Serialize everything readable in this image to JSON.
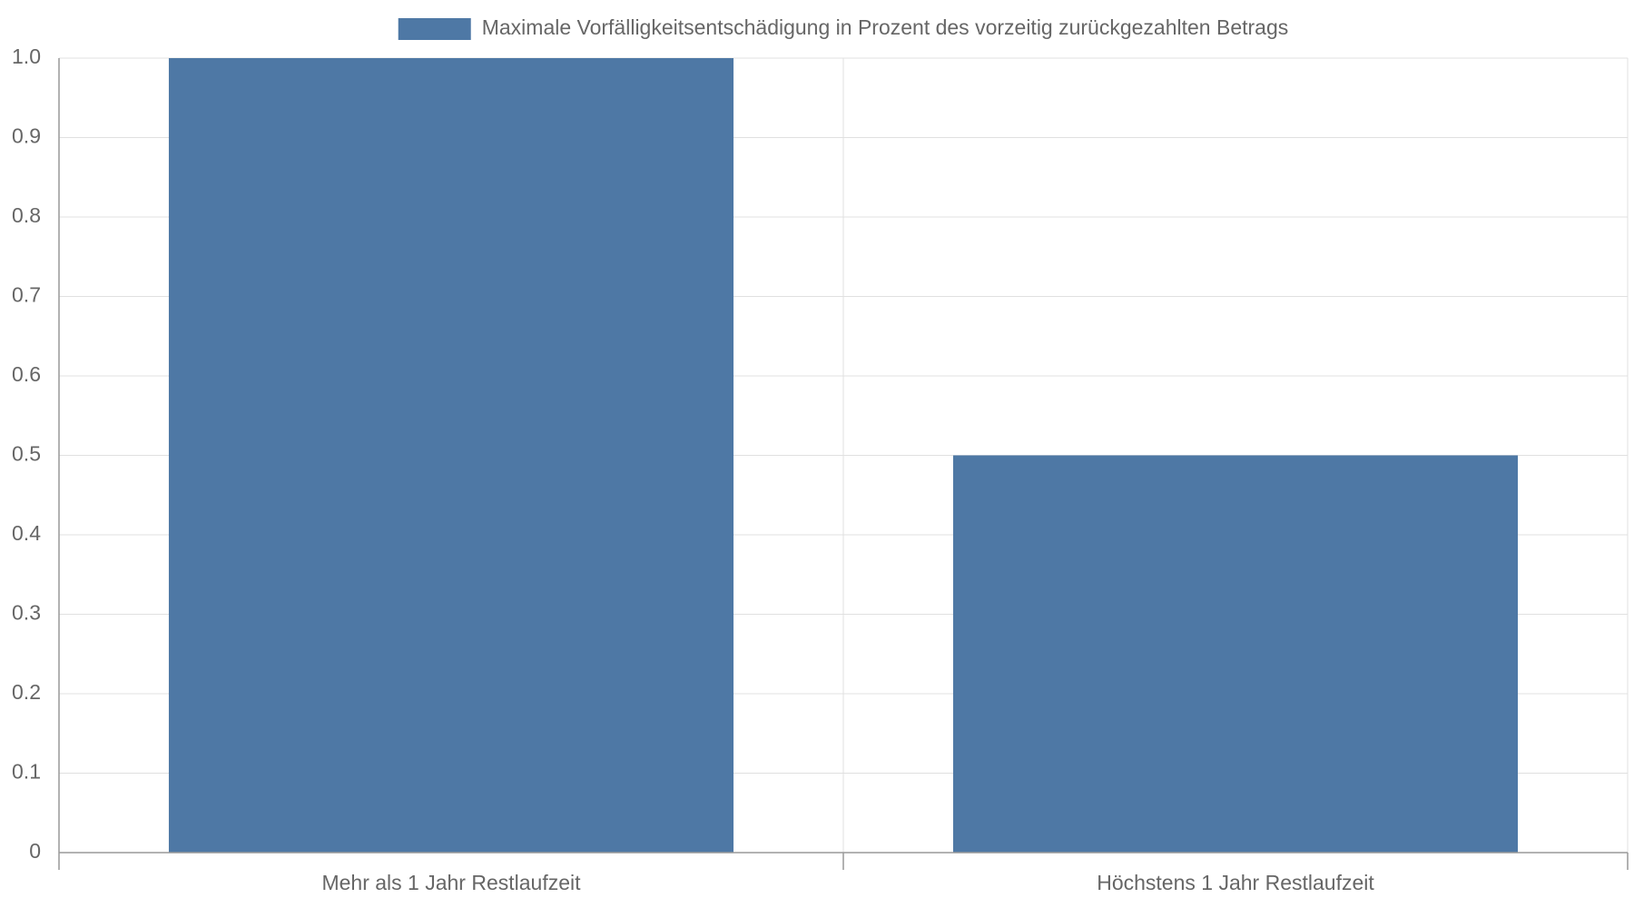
{
  "chart_data": {
    "type": "bar",
    "categories": [
      "Mehr als 1 Jahr Restlaufzeit",
      "Höchstens 1 Jahr Restlaufzeit"
    ],
    "series": [
      {
        "name": "Maximale Vorfälligkeitsentschädigung in Prozent des vorzeitig zurückgezahlten Betrags",
        "color": "#4e78a5",
        "values": [
          1,
          0.5
        ]
      }
    ],
    "ylim": [
      0,
      1
    ],
    "yticks": [
      0,
      0.1,
      0.2,
      0.3,
      0.4,
      0.5,
      0.6,
      0.7,
      0.8,
      0.9,
      {
        "value": 1,
        "label": "1.0"
      }
    ],
    "grid": true,
    "legend": "top"
  }
}
